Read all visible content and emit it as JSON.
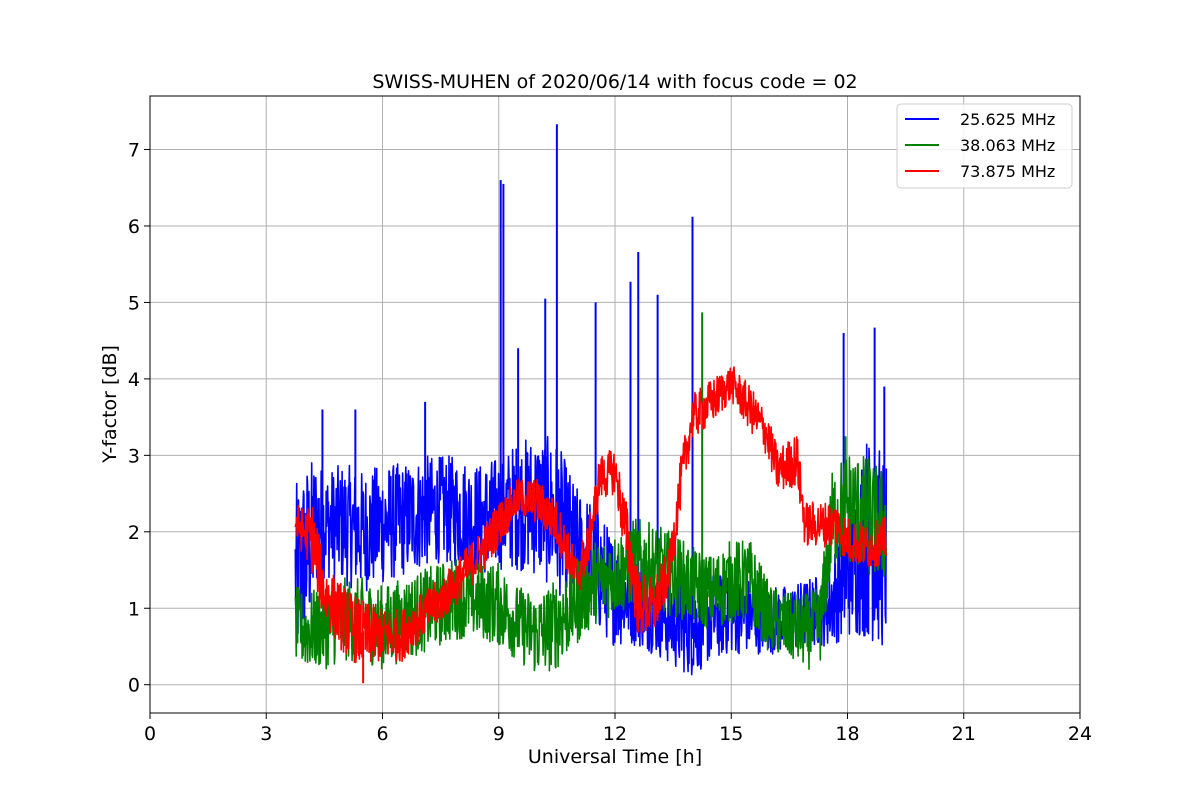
{
  "chart_data": {
    "type": "line",
    "title": "SWISS-MUHEN of 2020/06/14 with focus code = 02",
    "xlabel": "Universal Time [h]",
    "ylabel": "Y-factor [dB]",
    "xlim": [
      0,
      24
    ],
    "ylim": [
      -0.37,
      7.7
    ],
    "xticks": [
      "0",
      "3",
      "6",
      "9",
      "12",
      "15",
      "18",
      "21",
      "24"
    ],
    "yticks": [
      "0",
      "1",
      "2",
      "3",
      "4",
      "5",
      "6",
      "7"
    ],
    "grid": true,
    "legend_position": "top-right",
    "series": [
      {
        "name": "25.625 MHz",
        "color": "#0000ff",
        "x": [
          3.75,
          4.0,
          4.3,
          4.5,
          5.0,
          5.5,
          6.0,
          6.5,
          7.0,
          7.5,
          8.0,
          8.5,
          9.0,
          9.5,
          10.0,
          10.5,
          11.0,
          11.5,
          12.0,
          12.5,
          13.0,
          13.5,
          14.0,
          14.5,
          15.0,
          15.5,
          16.0,
          16.5,
          17.0,
          17.5,
          18.0,
          18.5,
          19.0
        ],
        "y": [
          1.5,
          1.8,
          2.0,
          2.1,
          2.0,
          2.0,
          2.0,
          2.0,
          2.2,
          2.2,
          2.2,
          2.1,
          2.1,
          2.3,
          2.3,
          2.1,
          1.6,
          1.5,
          1.0,
          1.0,
          0.9,
          0.7,
          0.6,
          0.9,
          0.8,
          0.8,
          0.7,
          0.7,
          0.8,
          0.8,
          1.4,
          2.2,
          1.8
        ],
        "y_low": [
          0.2,
          0.4,
          1.2,
          1.4,
          1.3,
          1.2,
          1.3,
          1.4,
          1.5,
          1.6,
          1.5,
          1.4,
          1.5,
          1.5,
          1.4,
          1.2,
          0.9,
          0.7,
          0.5,
          0.5,
          0.4,
          0.2,
          0.1,
          0.3,
          0.4,
          0.4,
          0.4,
          0.4,
          0.5,
          0.5,
          0.6,
          0.6,
          0.4
        ],
        "y_high": [
          2.6,
          2.9,
          3.0,
          2.8,
          2.9,
          2.8,
          2.9,
          2.9,
          3.0,
          3.0,
          3.0,
          2.9,
          3.0,
          3.2,
          3.3,
          3.2,
          2.6,
          2.4,
          1.9,
          1.9,
          1.7,
          1.5,
          1.4,
          1.5,
          1.4,
          1.4,
          1.3,
          1.3,
          1.4,
          1.5,
          2.4,
          3.3,
          3.0
        ],
        "spikes": [
          [
            4.45,
            3.6
          ],
          [
            5.3,
            3.6
          ],
          [
            7.1,
            3.7
          ],
          [
            9.05,
            6.6
          ],
          [
            9.12,
            6.55
          ],
          [
            9.5,
            4.4
          ],
          [
            10.2,
            5.05
          ],
          [
            10.5,
            7.33
          ],
          [
            11.5,
            5.0
          ],
          [
            12.4,
            5.27
          ],
          [
            12.6,
            5.66
          ],
          [
            13.1,
            5.1
          ],
          [
            14.0,
            6.12
          ],
          [
            17.9,
            4.6
          ],
          [
            18.7,
            4.67
          ],
          [
            18.95,
            3.9
          ]
        ]
      },
      {
        "name": "38.063 MHz",
        "color": "#008000",
        "x": [
          3.75,
          4.0,
          4.5,
          5.0,
          5.5,
          6.0,
          6.5,
          7.0,
          7.5,
          8.0,
          8.5,
          9.0,
          9.5,
          10.0,
          10.5,
          11.0,
          11.5,
          12.0,
          12.5,
          13.0,
          13.5,
          14.0,
          14.5,
          15.0,
          15.5,
          16.0,
          16.5,
          17.0,
          17.3,
          17.6,
          18.0,
          18.5,
          19.0
        ],
        "y": [
          0.8,
          0.7,
          0.7,
          0.8,
          0.8,
          0.7,
          0.8,
          0.9,
          1.0,
          1.1,
          1.1,
          1.1,
          0.8,
          0.7,
          0.8,
          1.1,
          1.4,
          1.5,
          1.6,
          1.5,
          1.4,
          1.3,
          1.2,
          1.3,
          1.3,
          0.8,
          0.7,
          0.7,
          0.8,
          2.2,
          2.4,
          2.2,
          2.1
        ],
        "y_low": [
          0.3,
          0.2,
          0.2,
          0.3,
          0.3,
          0.2,
          0.3,
          0.4,
          0.5,
          0.6,
          0.6,
          0.5,
          0.3,
          0.1,
          0.2,
          0.5,
          0.8,
          0.9,
          1.0,
          0.9,
          0.9,
          0.8,
          0.7,
          0.8,
          0.8,
          0.4,
          0.3,
          0.2,
          0.3,
          1.5,
          1.6,
          1.4,
          1.3
        ],
        "y_high": [
          1.3,
          1.2,
          1.3,
          1.4,
          1.4,
          1.3,
          1.4,
          1.5,
          1.6,
          1.7,
          1.6,
          1.6,
          1.3,
          1.2,
          1.4,
          1.7,
          1.9,
          2.0,
          2.2,
          2.1,
          2.0,
          1.8,
          1.7,
          1.9,
          1.9,
          1.3,
          1.2,
          1.2,
          1.3,
          2.8,
          3.1,
          3.0,
          2.8
        ],
        "spikes": [
          [
            14.25,
            4.87
          ],
          [
            17.95,
            3.25
          ]
        ]
      },
      {
        "name": "73.875 MHz",
        "color": "#ff0000",
        "x": [
          3.75,
          4.0,
          4.2,
          4.5,
          5.0,
          5.5,
          6.0,
          6.5,
          7.0,
          7.5,
          8.0,
          8.5,
          9.0,
          9.5,
          10.0,
          10.5,
          10.8,
          11.0,
          11.3,
          11.6,
          12.0,
          12.3,
          12.6,
          13.0,
          13.4,
          13.7,
          14.0,
          14.5,
          15.0,
          15.5,
          15.9,
          16.2,
          16.7,
          16.9,
          17.3,
          17.7,
          18.0,
          18.5,
          19.0
        ],
        "y": [
          2.1,
          2.0,
          1.9,
          1.3,
          0.9,
          0.7,
          0.7,
          0.7,
          0.9,
          1.1,
          1.4,
          1.7,
          2.1,
          2.5,
          2.4,
          2.1,
          1.7,
          1.4,
          1.8,
          2.7,
          2.8,
          2.0,
          1.1,
          1.0,
          1.5,
          2.6,
          3.5,
          3.7,
          3.9,
          3.6,
          3.3,
          2.8,
          2.9,
          2.1,
          2.1,
          2.1,
          1.9,
          1.8,
          1.9
        ],
        "y_low": [
          1.8,
          1.7,
          1.4,
          0.8,
          0.4,
          0.2,
          0.3,
          0.3,
          0.6,
          0.8,
          1.1,
          1.4,
          1.8,
          2.2,
          2.1,
          1.8,
          1.4,
          1.1,
          1.5,
          2.4,
          2.5,
          1.5,
          0.6,
          0.6,
          1.2,
          2.3,
          3.2,
          3.4,
          3.7,
          3.3,
          3.0,
          2.5,
          2.6,
          1.8,
          1.8,
          1.8,
          1.6,
          1.5,
          1.6
        ],
        "y_high": [
          2.4,
          2.3,
          2.4,
          1.6,
          1.3,
          1.1,
          1.0,
          1.0,
          1.2,
          1.4,
          1.7,
          2.0,
          2.4,
          2.7,
          2.7,
          2.4,
          2.0,
          1.7,
          2.1,
          3.0,
          3.1,
          2.4,
          1.5,
          1.4,
          1.8,
          3.0,
          3.8,
          4.0,
          4.2,
          3.9,
          3.6,
          3.1,
          3.3,
          2.4,
          2.4,
          2.4,
          2.2,
          2.1,
          2.2
        ],
        "spikes": [
          [
            5.5,
            0.02
          ],
          [
            8.1,
            1.4
          ]
        ]
      }
    ]
  }
}
